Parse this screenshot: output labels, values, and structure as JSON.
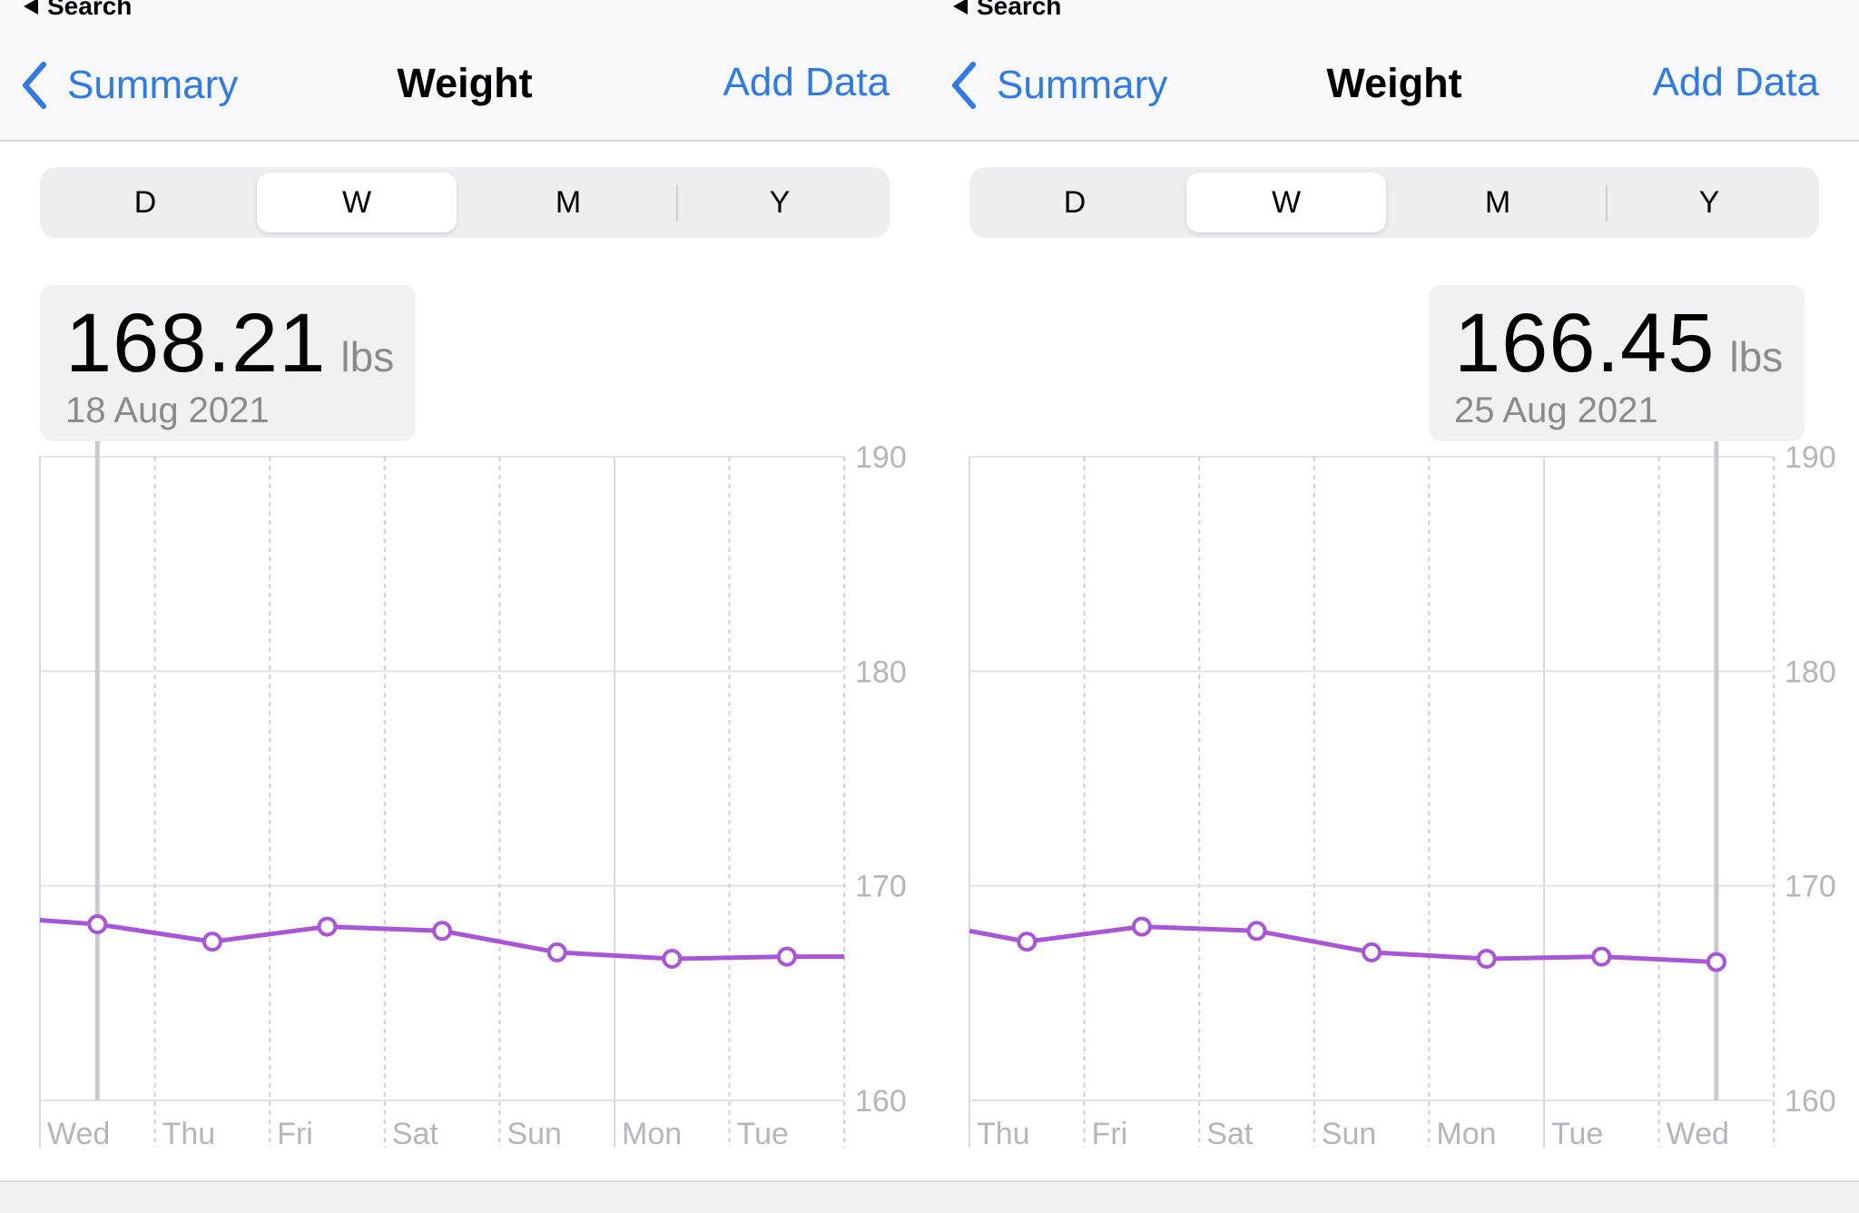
{
  "status_back_label": "Search",
  "nav": {
    "back_label": "Summary",
    "title": "Weight",
    "add_label": "Add Data"
  },
  "segments": [
    "D",
    "W",
    "M",
    "Y"
  ],
  "selected_segment": "W",
  "unit": "lbs",
  "colors": {
    "accent": "#2f7ae5",
    "series": "#a855d6",
    "selection_line": "#c9c9cf"
  },
  "panels": [
    {
      "readout": {
        "value": "168.21",
        "unit": "lbs",
        "date": "18 Aug 2021"
      },
      "readout_side": "left",
      "selected_index": 0
    },
    {
      "readout": {
        "value": "166.45",
        "unit": "lbs",
        "date": "25 Aug 2021"
      },
      "readout_side": "right",
      "selected_index": 6
    }
  ],
  "chart_data": [
    {
      "type": "line",
      "title": "",
      "xlabel": "",
      "ylabel": "",
      "categories": [
        "Wed",
        "Thu",
        "Fri",
        "Sat",
        "Sun",
        "Mon",
        "Tue"
      ],
      "series": [
        {
          "values": [
            168.21,
            167.4,
            168.1,
            167.9,
            166.9,
            166.6,
            166.7
          ]
        }
      ],
      "lead_in_value": 168.4,
      "trail_value": 166.7,
      "ylim": [
        160,
        190
      ],
      "yticks": [
        160,
        170,
        180,
        190
      ],
      "grid": true,
      "legend": "none"
    },
    {
      "type": "line",
      "title": "",
      "xlabel": "",
      "ylabel": "",
      "categories": [
        "Thu",
        "Fri",
        "Sat",
        "Sun",
        "Mon",
        "Tue",
        "Wed"
      ],
      "series": [
        {
          "values": [
            167.4,
            168.1,
            167.9,
            166.9,
            166.6,
            166.7,
            166.45
          ]
        }
      ],
      "lead_in_value": 167.9,
      "ylim": [
        160,
        190
      ],
      "yticks": [
        160,
        170,
        180,
        190
      ],
      "grid": true,
      "legend": "none"
    }
  ]
}
